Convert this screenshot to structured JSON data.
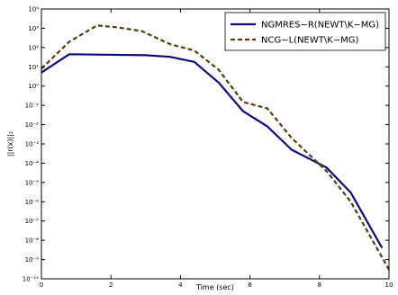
{
  "chart_data": {
    "type": "line",
    "xlabel": "Time (sec)",
    "ylabel": "||r(x)||₂",
    "xlim": [
      0,
      10
    ],
    "ylim_log10": [
      -10,
      4
    ],
    "y_scale": "log",
    "x_ticks": [
      0,
      2,
      4,
      6,
      8,
      10
    ],
    "x_tick_labels": [
      "0",
      "2",
      "4",
      "6",
      "8",
      "10"
    ],
    "y_ticks_exp": [
      4,
      3,
      2,
      1,
      0,
      -1,
      -2,
      -3,
      -4,
      -5,
      -6,
      -7,
      -8,
      -9,
      -10
    ],
    "y_tick_labels": [
      "10⁴",
      "10³",
      "10²",
      "10¹",
      "10⁰",
      "10⁻¹",
      "10⁻²",
      "10⁻³",
      "10⁻⁴",
      "10⁻⁵",
      "10⁻⁶",
      "10⁻⁷",
      "10⁻⁸",
      "10⁻⁹",
      "10⁻¹⁰"
    ],
    "grid": false,
    "legend_position": "top-right",
    "series": [
      {
        "name": "NGMRES−R(NEWT\\K−MG)",
        "color": "#0a0a7a",
        "style": "solid",
        "x": [
          0,
          0.8,
          3.0,
          3.7,
          4.4,
          5.1,
          5.8,
          6.5,
          7.2,
          8.2,
          8.9,
          9.8
        ],
        "y": [
          5,
          45,
          40,
          33,
          18,
          1.5,
          0.05,
          0.008,
          0.0005,
          6e-05,
          3e-06,
          4e-09
        ]
      },
      {
        "name": "NCG−L(NEWT\\K−MG)",
        "color": "#5a3a0a",
        "style": "dashed",
        "x": [
          0,
          0.8,
          1.6,
          2.2,
          2.9,
          3.7,
          4.4,
          5.1,
          5.8,
          6.5,
          7.2,
          8.2,
          8.9,
          10.0
        ],
        "y": [
          8,
          200,
          1400,
          1100,
          700,
          150,
          70,
          7,
          0.15,
          0.07,
          0.002,
          4e-05,
          1e-06,
          3e-10
        ]
      }
    ]
  }
}
